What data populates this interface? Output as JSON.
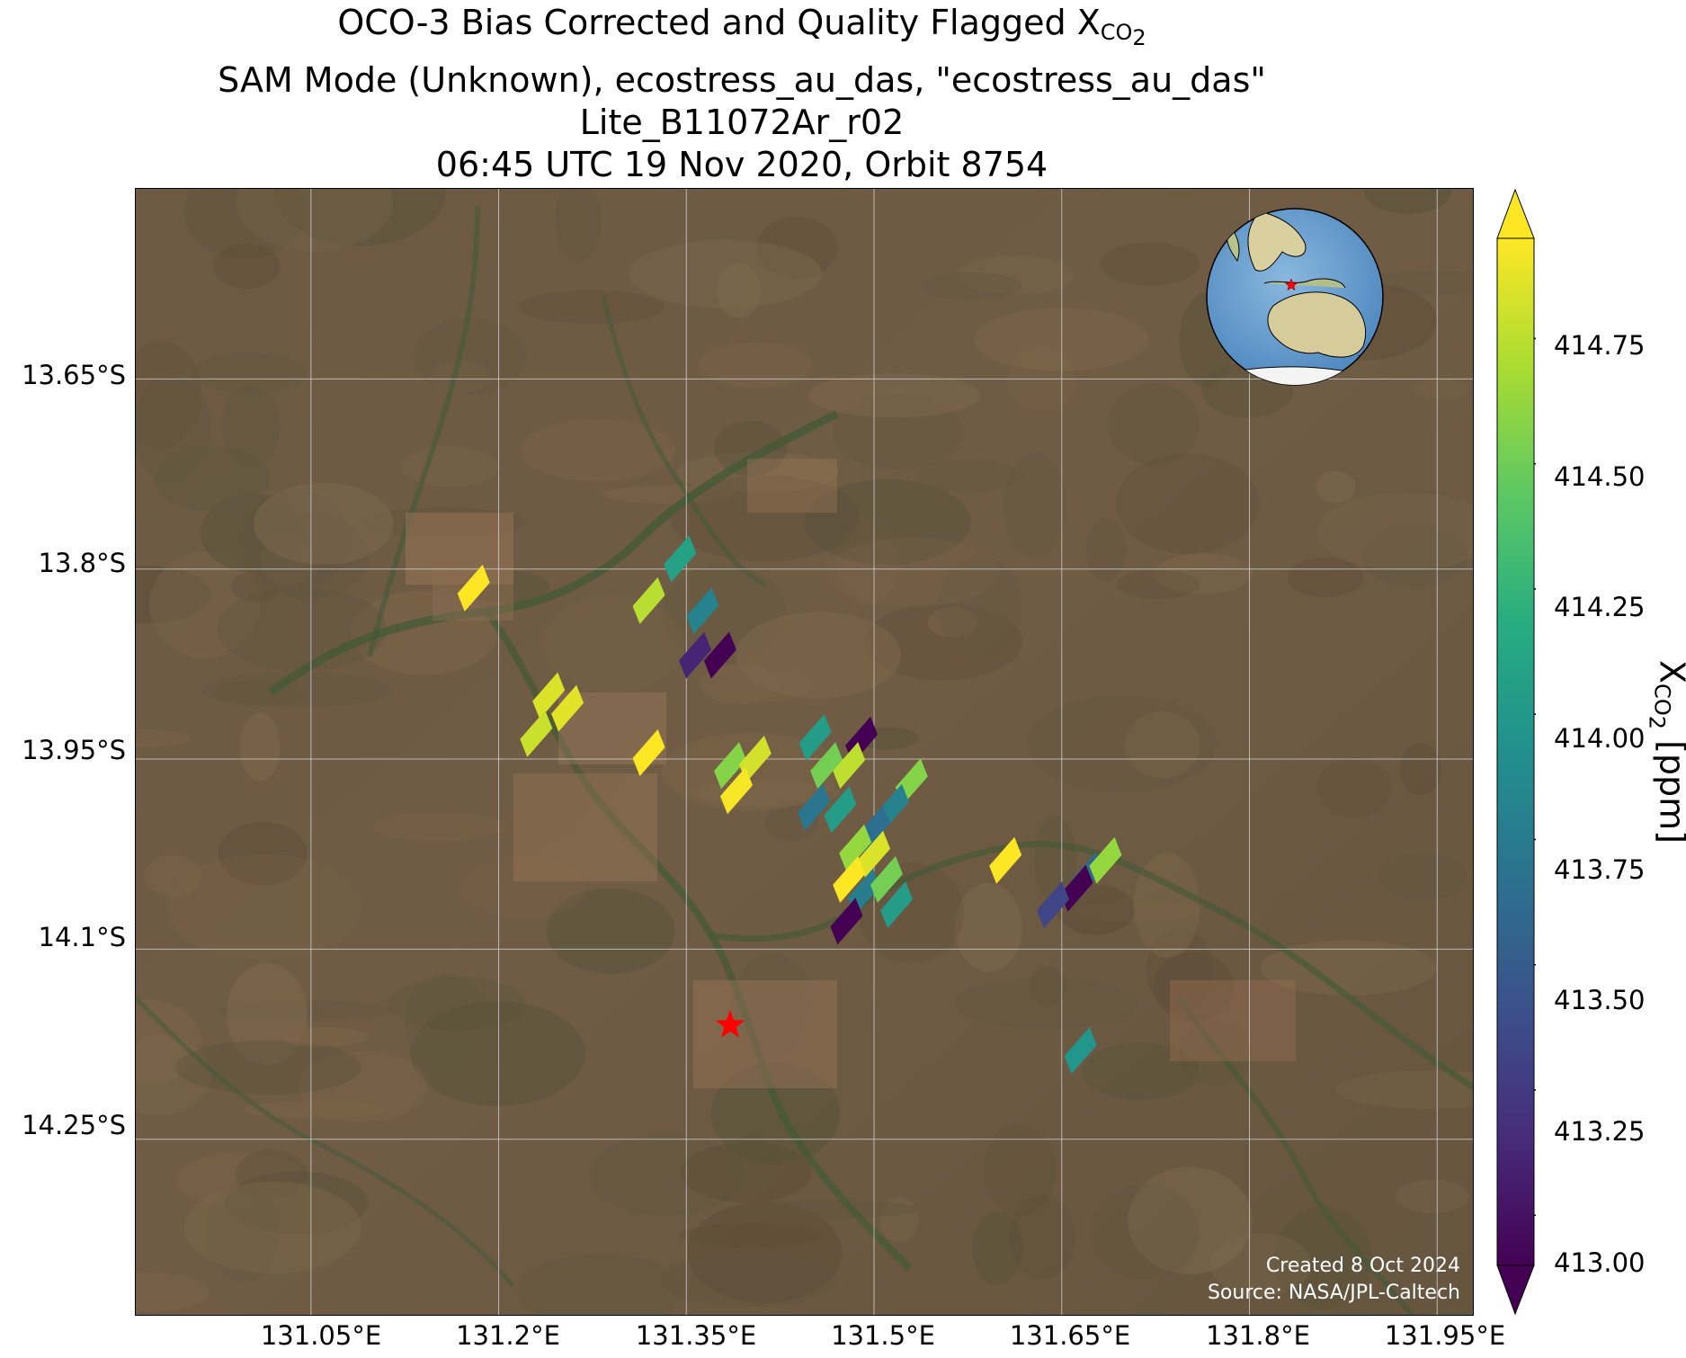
{
  "title": {
    "line1_prefix": "OCO-3 Bias Corrected and Quality Flagged X",
    "line1_sub": "CO",
    "line1_sub2": "2",
    "line2": "SAM Mode (Unknown), ecostress_au_das, \"ecostress_au_das\"",
    "line3": "Lite_B11072Ar_r02",
    "line4": "06:45 UTC 19 Nov 2020, Orbit 8754"
  },
  "map": {
    "lat_ticks": [
      "13.65°S",
      "13.8°S",
      "13.95°S",
      "14.1°S",
      "14.25°S"
    ],
    "lon_ticks": [
      "131.05°E",
      "131.2°E",
      "131.35°E",
      "131.5°E",
      "131.65°E",
      "131.8°E",
      "131.95°E"
    ],
    "lon_range": [
      130.91,
      131.98
    ],
    "lat_range": [
      -14.39,
      -13.5
    ],
    "credit_line1": "Created 8 Oct 2024",
    "credit_line2": "Source: NASA/JPL-Caltech",
    "target_marker": {
      "lon": 131.385,
      "lat": -14.16,
      "color": "#ff0000",
      "symbol": "star"
    },
    "inset_globe": {
      "center": "Australia",
      "marker_color": "#ff0000"
    },
    "background": "satellite-imagery"
  },
  "colorbar": {
    "label_prefix": "X",
    "label_sub": "CO",
    "label_sub2": "2",
    "label_suffix": " [ppm]",
    "colormap": "viridis",
    "range": [
      412.9,
      414.95
    ],
    "ticks": [
      "413.00",
      "413.25",
      "413.50",
      "413.75",
      "414.00",
      "414.25",
      "414.50",
      "414.75"
    ],
    "extend": "both"
  },
  "chart_data": {
    "type": "scatter",
    "marker": "diamond",
    "xlabel": "",
    "ylabel": "",
    "points": [
      {
        "lon": 131.18,
        "lat": -13.815,
        "xco2": 414.92
      },
      {
        "lon": 131.345,
        "lat": -13.792,
        "xco2": 414.1
      },
      {
        "lon": 131.32,
        "lat": -13.825,
        "xco2": 414.7
      },
      {
        "lon": 131.363,
        "lat": -13.833,
        "xco2": 413.85
      },
      {
        "lon": 131.357,
        "lat": -13.868,
        "xco2": 413.2
      },
      {
        "lon": 131.377,
        "lat": -13.868,
        "xco2": 413.0
      },
      {
        "lon": 131.24,
        "lat": -13.9,
        "xco2": 414.8
      },
      {
        "lon": 131.255,
        "lat": -13.91,
        "xco2": 414.82
      },
      {
        "lon": 131.23,
        "lat": -13.93,
        "xco2": 414.75
      },
      {
        "lon": 131.32,
        "lat": -13.945,
        "xco2": 414.9
      },
      {
        "lon": 131.385,
        "lat": -13.955,
        "xco2": 414.55
      },
      {
        "lon": 131.405,
        "lat": -13.95,
        "xco2": 414.78
      },
      {
        "lon": 131.39,
        "lat": -13.975,
        "xco2": 414.88
      },
      {
        "lon": 131.453,
        "lat": -13.933,
        "xco2": 414.05
      },
      {
        "lon": 131.49,
        "lat": -13.935,
        "xco2": 413.0
      },
      {
        "lon": 131.462,
        "lat": -13.955,
        "xco2": 414.5
      },
      {
        "lon": 131.48,
        "lat": -13.955,
        "xco2": 414.72
      },
      {
        "lon": 131.53,
        "lat": -13.968,
        "xco2": 414.55
      },
      {
        "lon": 131.515,
        "lat": -13.988,
        "xco2": 413.85
      },
      {
        "lon": 131.5,
        "lat": -14.005,
        "xco2": 413.7
      },
      {
        "lon": 131.452,
        "lat": -13.988,
        "xco2": 413.75
      },
      {
        "lon": 131.473,
        "lat": -13.99,
        "xco2": 414.05
      },
      {
        "lon": 131.485,
        "lat": -14.02,
        "xco2": 414.6
      },
      {
        "lon": 131.5,
        "lat": -14.025,
        "xco2": 414.8
      },
      {
        "lon": 131.48,
        "lat": -14.045,
        "xco2": 414.95
      },
      {
        "lon": 131.492,
        "lat": -14.055,
        "xco2": 413.8
      },
      {
        "lon": 131.51,
        "lat": -14.045,
        "xco2": 414.5
      },
      {
        "lon": 131.518,
        "lat": -14.065,
        "xco2": 414.05
      },
      {
        "lon": 131.478,
        "lat": -14.078,
        "xco2": 413.0
      },
      {
        "lon": 131.605,
        "lat": -14.03,
        "xco2": 414.93
      },
      {
        "lon": 131.67,
        "lat": -14.042,
        "xco2": 413.65
      },
      {
        "lon": 131.685,
        "lat": -14.03,
        "xco2": 414.6
      },
      {
        "lon": 131.662,
        "lat": -14.052,
        "xco2": 413.0
      },
      {
        "lon": 131.643,
        "lat": -14.065,
        "xco2": 413.4
      },
      {
        "lon": 131.665,
        "lat": -14.18,
        "xco2": 414.0
      }
    ]
  }
}
